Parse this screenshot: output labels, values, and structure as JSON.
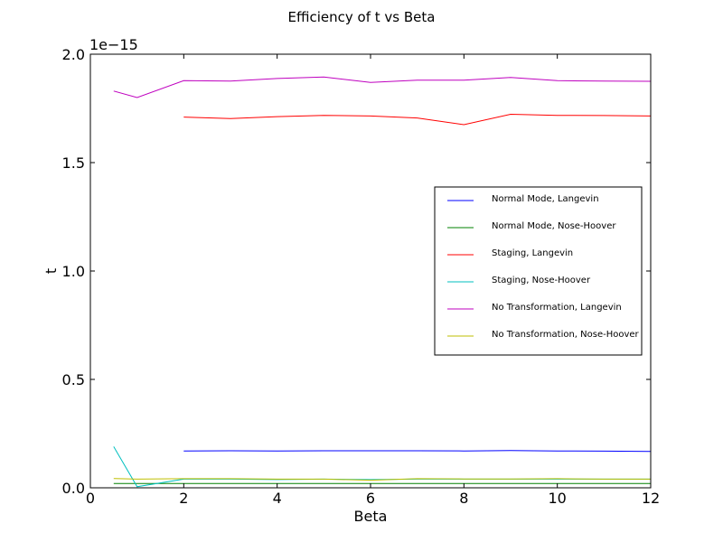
{
  "chart_data": {
    "type": "line",
    "title": "Efficiency of t vs Beta",
    "xlabel": "Beta",
    "ylabel": "t",
    "y_offset_label": "1e−15",
    "xlim": [
      0,
      12
    ],
    "ylim": [
      0.0,
      2.0
    ],
    "xticks": [
      "0",
      "2",
      "4",
      "6",
      "8",
      "10",
      "12"
    ],
    "yticks": [
      "0.0",
      "0.5",
      "1.0",
      "1.5",
      "2.0"
    ],
    "grid": false,
    "legend_position": "center-right",
    "series": [
      {
        "name": "Normal Mode, Langevin",
        "color": "#0000ff",
        "x": [
          2,
          3,
          4,
          5,
          6,
          7,
          8,
          9,
          10,
          11,
          12
        ],
        "y": [
          0.17,
          0.171,
          0.17,
          0.171,
          0.171,
          0.171,
          0.17,
          0.172,
          0.17,
          0.169,
          0.168
        ]
      },
      {
        "name": "Normal Mode, Nose-Hoover",
        "color": "#008000",
        "x": [
          0.5,
          1,
          2,
          3,
          4,
          5,
          6,
          7,
          8,
          9,
          10,
          11,
          12
        ],
        "y": [
          0.02,
          0.02,
          0.02,
          0.02,
          0.02,
          0.02,
          0.02,
          0.02,
          0.02,
          0.02,
          0.02,
          0.02,
          0.02
        ]
      },
      {
        "name": "Staging, Langevin",
        "color": "#ff0000",
        "x": [
          2,
          3,
          4,
          5,
          6,
          7,
          8,
          9,
          10,
          11,
          12
        ],
        "y": [
          1.71,
          1.703,
          1.712,
          1.718,
          1.715,
          1.706,
          1.675,
          1.723,
          1.718,
          1.717,
          1.715
        ]
      },
      {
        "name": "Staging, Nose-Hoover",
        "color": "#00bfbf",
        "x": [
          0.5,
          1,
          2,
          3,
          4,
          5,
          6,
          7,
          8,
          9,
          10,
          11,
          12
        ],
        "y": [
          0.19,
          0.005,
          0.04,
          0.04,
          0.038,
          0.04,
          0.038,
          0.04,
          0.04,
          0.04,
          0.04,
          0.04,
          0.04
        ]
      },
      {
        "name": "No Transformation, Langevin",
        "color": "#bf00bf",
        "x": [
          0.5,
          1,
          2,
          3,
          4,
          5,
          6,
          7,
          8,
          9,
          10,
          11,
          12
        ],
        "y": [
          1.83,
          1.8,
          1.878,
          1.876,
          1.888,
          1.895,
          1.87,
          1.88,
          1.88,
          1.893,
          1.878,
          1.876,
          1.875
        ]
      },
      {
        "name": "No Transformation, Nose-Hoover",
        "color": "#bfbf00",
        "x": [
          0.5,
          1,
          2,
          3,
          4,
          5,
          6,
          7,
          8,
          9,
          10,
          11,
          12
        ],
        "y": [
          0.043,
          0.04,
          0.042,
          0.042,
          0.04,
          0.04,
          0.035,
          0.042,
          0.041,
          0.041,
          0.042,
          0.04,
          0.04
        ]
      }
    ]
  }
}
